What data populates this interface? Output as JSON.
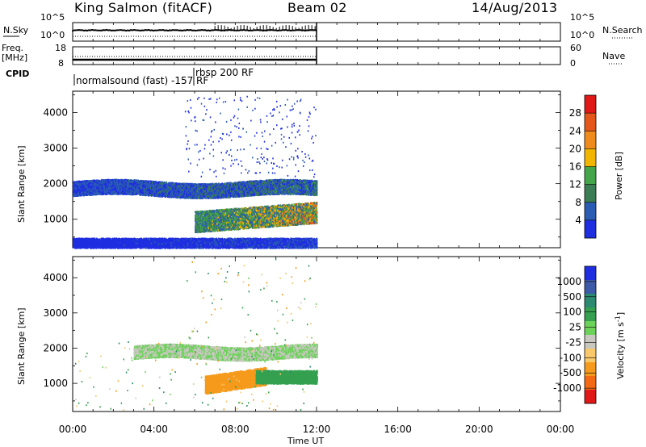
{
  "header": {
    "station": "King Salmon (fitACF)",
    "beam": "Beam 02",
    "date": "14/Aug/2013"
  },
  "strip": {
    "nsky_label": "N.Sky",
    "nsearch_label": "N.Search",
    "nsky_ticks": [
      "10^5",
      "10^0"
    ],
    "nsky_ticks_right": [
      "10^5",
      "10^0"
    ],
    "freq_label": "Freq.",
    "freq_unit": "[MHz]",
    "freq_ticks": [
      "18",
      "8"
    ],
    "nave_label": "Nave",
    "nave_ticks": [
      "60",
      "0"
    ],
    "cpid_label": "CPID",
    "cpid_entries": [
      "normalsound (fast) -157 RF",
      "rbsp 200 RF"
    ]
  },
  "colors": {
    "power_scale": [
      "#1f2ee0",
      "#2a5cb4",
      "#3b7d55",
      "#44a64a",
      "#f2b600",
      "#ef8a1c",
      "#e4561a",
      "#e01818"
    ],
    "velocity_scale": [
      "#e01818",
      "#f46a14",
      "#f59a1c",
      "#f8c86a",
      "#c8c8c0",
      "#6cd25a",
      "#34a050",
      "#2c8a70",
      "#3c5aa8",
      "#1f2ee0"
    ]
  },
  "chart_data": [
    {
      "type": "heatmap",
      "title": "",
      "ylabel": "Slant Range [km]",
      "xlabel": "",
      "xlim": [
        "00:00",
        "24:00"
      ],
      "ylim": [
        200,
        4600
      ],
      "y_ticks": [
        "1000",
        "2000",
        "3000",
        "4000"
      ],
      "colorbar": {
        "label": "Power [dB]",
        "ticks": [
          "4",
          "8",
          "12",
          "16",
          "20",
          "24",
          "28"
        ]
      },
      "features": [
        {
          "desc": "E-region band",
          "x_start": "00:00",
          "x_end": "12:00",
          "range_km": [
            1650,
            2100
          ],
          "power_db": [
            4,
            16
          ]
        },
        {
          "desc": "F-region band",
          "x_start": "06:00",
          "x_end": "12:00",
          "range_km": [
            800,
            1450
          ],
          "power_db": [
            8,
            30
          ]
        },
        {
          "desc": "near-range scatter",
          "x_start": "00:00",
          "x_end": "12:00",
          "range_km": [
            200,
            500
          ],
          "power_db": [
            4,
            8
          ]
        }
      ]
    },
    {
      "type": "heatmap",
      "title": "",
      "ylabel": "Slant Range [km]",
      "xlabel": "Time UT",
      "xlim": [
        "00:00",
        "24:00"
      ],
      "ylim": [
        200,
        4600
      ],
      "y_ticks": [
        "1000",
        "2000",
        "3000",
        "4000"
      ],
      "x_ticks": [
        "00:00",
        "04:00",
        "08:00",
        "12:00",
        "16:00",
        "20:00",
        "00:00"
      ],
      "colorbar": {
        "label": "Velocity [m s^-1]",
        "ticks": [
          "-1000",
          "-500",
          "-100",
          "-25",
          "25",
          "100",
          "500",
          "1000"
        ]
      },
      "features": [
        {
          "desc": "ground scatter",
          "x_start": "03:00",
          "x_end": "12:00",
          "range_km": [
            1700,
            2100
          ],
          "velocity_ms": [
            -25,
            25
          ]
        },
        {
          "desc": "negative velocity band",
          "x_start": "06:30",
          "x_end": "09:30",
          "range_km": [
            850,
            1400
          ],
          "velocity_ms": [
            -500,
            -100
          ]
        },
        {
          "desc": "positive velocity band",
          "x_start": "09:00",
          "x_end": "12:00",
          "range_km": [
            1000,
            1400
          ],
          "velocity_ms": [
            25,
            100
          ]
        }
      ]
    }
  ]
}
